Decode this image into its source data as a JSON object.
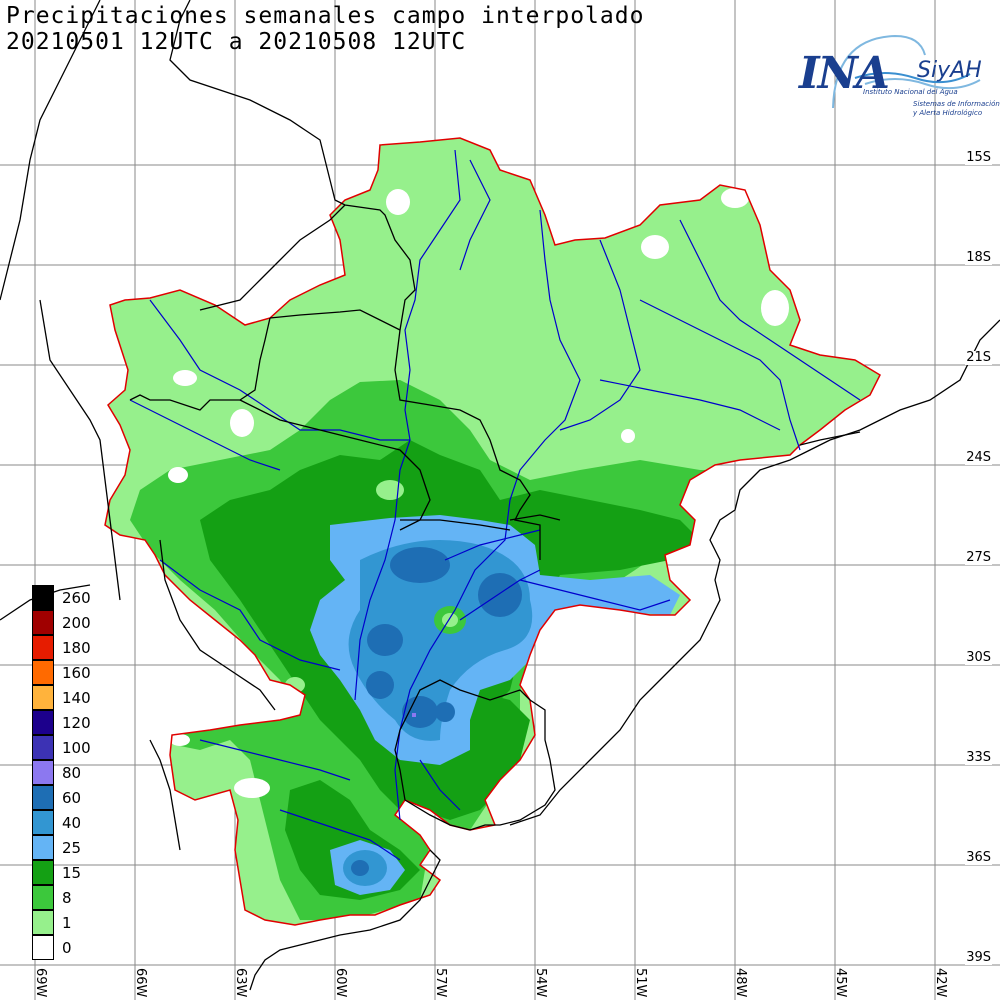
{
  "title": {
    "line1": "Precipitaciones semanales campo interpolado",
    "line2": "20210501 12UTC a 20210508 12UTC"
  },
  "logo": {
    "name": "INA",
    "system": "SiyAH",
    "org": "Instituto Nacional del Agua",
    "desc1": "Sistemas de Información",
    "desc2": "y Alerta Hidrológico"
  },
  "legend": {
    "items": [
      {
        "label": "260",
        "color": "#000000"
      },
      {
        "label": "200",
        "color": "#a00000"
      },
      {
        "label": "180",
        "color": "#e61c00"
      },
      {
        "label": "160",
        "color": "#ff6a00"
      },
      {
        "label": "140",
        "color": "#ffb33c"
      },
      {
        "label": "120",
        "color": "#1c008c"
      },
      {
        "label": "100",
        "color": "#3c32b4"
      },
      {
        "label": "80",
        "color": "#8c78f0"
      },
      {
        "label": "60",
        "color": "#1e6eb4"
      },
      {
        "label": "40",
        "color": "#3296d2"
      },
      {
        "label": "25",
        "color": "#64b4f5"
      },
      {
        "label": "15",
        "color": "#14a014"
      },
      {
        "label": "8",
        "color": "#3cc83c"
      },
      {
        "label": "1",
        "color": "#96f08c"
      },
      {
        "label": "0",
        "color": "#ffffff"
      }
    ]
  },
  "axes": {
    "lat_labels": [
      "15S",
      "18S",
      "21S",
      "24S",
      "27S",
      "30S",
      "33S",
      "36S",
      "39S"
    ],
    "lon_labels": [
      "69W",
      "66W",
      "63W",
      "60W",
      "57W",
      "54W",
      "51W",
      "48W",
      "45W",
      "42W"
    ]
  },
  "colors": {
    "light_green": "#96f08c",
    "medium_green": "#3cc83c",
    "dark_green": "#14a014",
    "light_blue": "#64b4f5",
    "medium_blue": "#3296d2",
    "dark_blue": "#1e6eb4",
    "violet": "#8c78f0",
    "basin_outline": "#e00000",
    "rivers": "#0000cc",
    "borders": "#000000",
    "grid": "#888888"
  }
}
